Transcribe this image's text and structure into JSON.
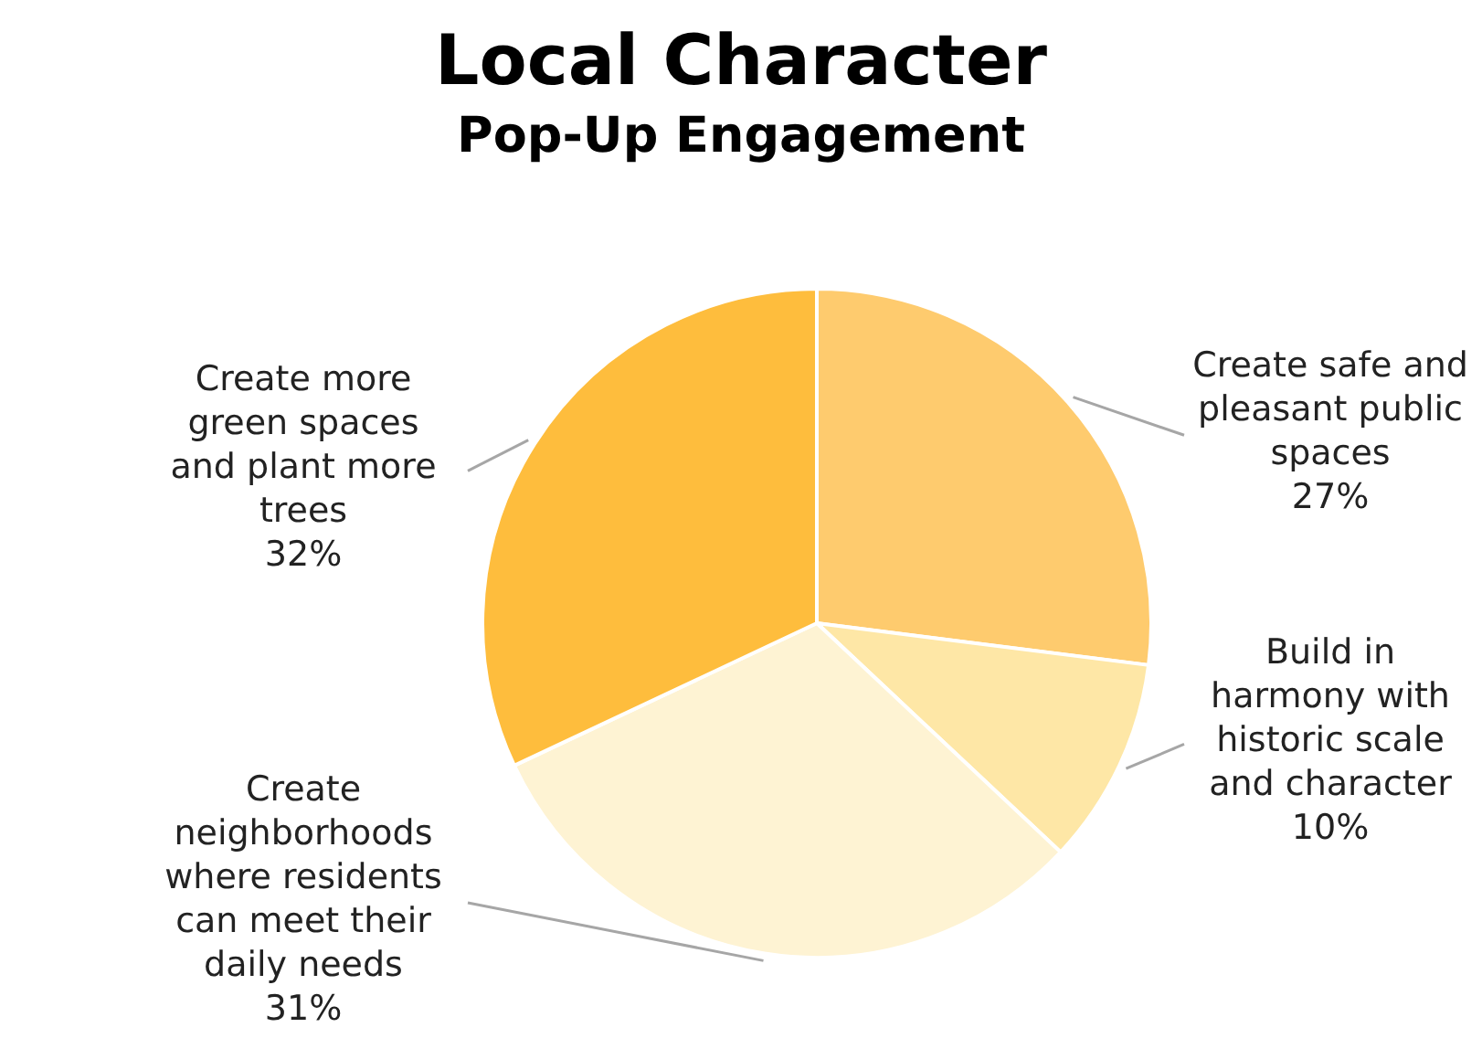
{
  "chart_data": {
    "type": "pie",
    "title": "Local Character",
    "subtitle": "Pop-Up Engagement",
    "categories": [
      "Create safe and pleasant public spaces",
      "Build in harmony with historic scale and character",
      "Create neighborhoods where residents can meet their daily needs",
      "Create more green spaces and plant more trees"
    ],
    "values": [
      27,
      10,
      31,
      32
    ],
    "value_labels": [
      "27%",
      "10%",
      "31%",
      "32%"
    ],
    "colors": [
      "#fecb6e",
      "#fee7a6",
      "#fef3d3",
      "#febd3d"
    ],
    "legend": false
  }
}
